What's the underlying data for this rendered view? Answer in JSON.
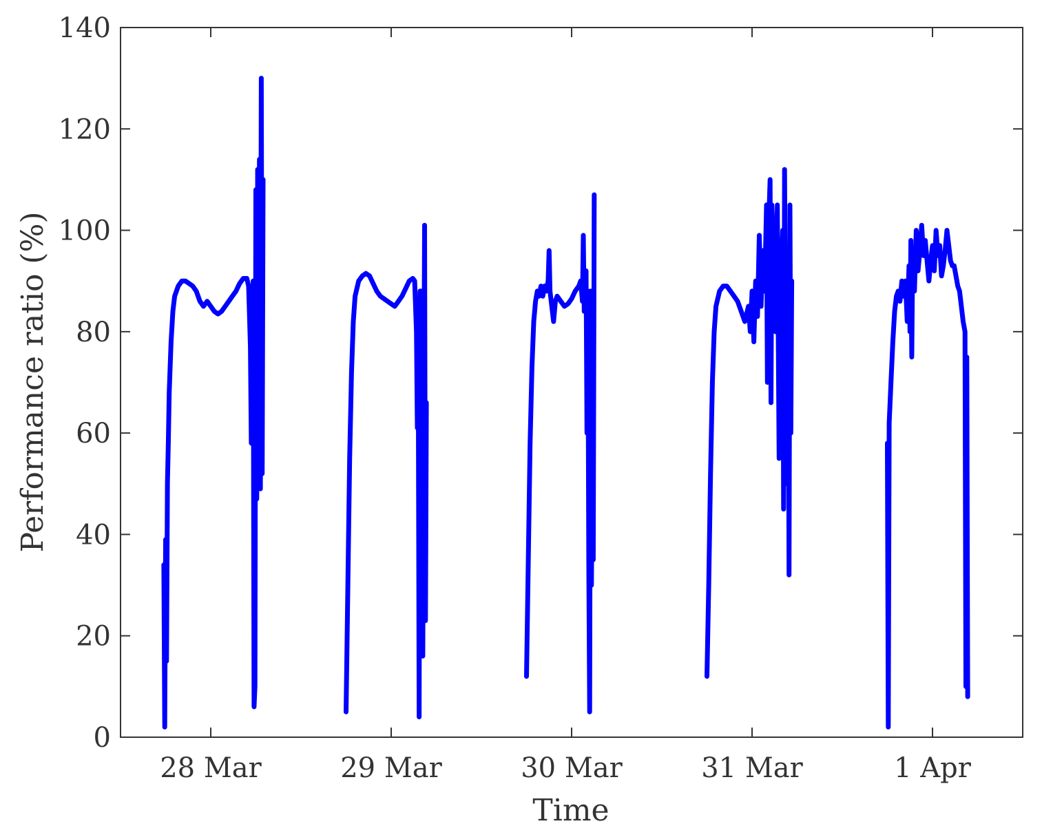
{
  "chart_data": {
    "type": "line",
    "title": "",
    "xlabel": "Time",
    "ylabel": "Performance ratio (%)",
    "ylim": [
      0,
      140
    ],
    "xlim": [
      -0.5,
      4.5
    ],
    "xunit": "days from 28 Mar (tick positions)",
    "y_ticks": [
      0,
      20,
      40,
      60,
      80,
      100,
      120,
      140
    ],
    "x_ticks": [
      {
        "value": 0,
        "label": "28 Mar"
      },
      {
        "value": 1,
        "label": "29 Mar"
      },
      {
        "value": 2,
        "label": "30 Mar"
      },
      {
        "value": 3,
        "label": "31 Mar"
      },
      {
        "value": 4,
        "label": "1 Apr"
      }
    ],
    "grid": false,
    "legend": "none",
    "series": [
      {
        "color": "#0000ff",
        "segments": [
          [
            [
              -0.26,
              34
            ],
            [
              -0.255,
              2
            ],
            [
              -0.25,
              39
            ],
            [
              -0.245,
              15
            ],
            [
              -0.24,
              50
            ],
            [
              -0.235,
              58
            ],
            [
              -0.23,
              68
            ],
            [
              -0.22,
              78
            ],
            [
              -0.21,
              84
            ],
            [
              -0.2,
              87
            ],
            [
              -0.18,
              89
            ],
            [
              -0.16,
              90
            ],
            [
              -0.14,
              90
            ],
            [
              -0.12,
              89.5
            ],
            [
              -0.1,
              89
            ],
            [
              -0.08,
              88
            ],
            [
              -0.06,
              86
            ],
            [
              -0.04,
              85
            ],
            [
              -0.02,
              86
            ],
            [
              0,
              85
            ],
            [
              0.02,
              84
            ],
            [
              0.04,
              83.5
            ],
            [
              0.06,
              84
            ],
            [
              0.08,
              85
            ],
            [
              0.1,
              86
            ],
            [
              0.12,
              87
            ],
            [
              0.14,
              88
            ],
            [
              0.16,
              89.5
            ],
            [
              0.18,
              90.5
            ],
            [
              0.2,
              90.5
            ],
            [
              0.21,
              89
            ],
            [
              0.22,
              77
            ],
            [
              0.225,
              58
            ],
            [
              0.23,
              62
            ],
            [
              0.235,
              90
            ],
            [
              0.24,
              6
            ],
            [
              0.245,
              10
            ],
            [
              0.25,
              108
            ],
            [
              0.255,
              47
            ],
            [
              0.26,
              112
            ],
            [
              0.265,
              58
            ],
            [
              0.27,
              114
            ],
            [
              0.275,
              49
            ],
            [
              0.28,
              130
            ],
            [
              0.285,
              52
            ],
            [
              0.29,
              110
            ]
          ],
          [
            [
              0.75,
              5
            ],
            [
              0.76,
              30
            ],
            [
              0.77,
              55
            ],
            [
              0.78,
              72
            ],
            [
              0.79,
              82
            ],
            [
              0.8,
              87
            ],
            [
              0.82,
              90
            ],
            [
              0.84,
              91
            ],
            [
              0.86,
              91.5
            ],
            [
              0.88,
              91
            ],
            [
              0.9,
              89.5
            ],
            [
              0.92,
              88
            ],
            [
              0.94,
              87
            ],
            [
              0.96,
              86.5
            ],
            [
              0.98,
              86
            ],
            [
              1.0,
              85.5
            ],
            [
              1.02,
              85
            ],
            [
              1.04,
              86
            ],
            [
              1.06,
              87
            ],
            [
              1.08,
              88.5
            ],
            [
              1.1,
              90
            ],
            [
              1.12,
              90.5
            ],
            [
              1.13,
              90
            ],
            [
              1.14,
              80
            ],
            [
              1.145,
              61
            ],
            [
              1.15,
              75
            ],
            [
              1.155,
              4
            ],
            [
              1.16,
              88
            ],
            [
              1.165,
              20
            ],
            [
              1.17,
              88
            ],
            [
              1.175,
              16
            ],
            [
              1.18,
              60
            ],
            [
              1.185,
              101
            ],
            [
              1.19,
              23
            ],
            [
              1.195,
              66
            ]
          ],
          [
            [
              1.75,
              12
            ],
            [
              1.76,
              35
            ],
            [
              1.77,
              58
            ],
            [
              1.78,
              73
            ],
            [
              1.79,
              82
            ],
            [
              1.8,
              86
            ],
            [
              1.81,
              88
            ],
            [
              1.82,
              87
            ],
            [
              1.83,
              89
            ],
            [
              1.84,
              87
            ],
            [
              1.85,
              89
            ],
            [
              1.86,
              88
            ],
            [
              1.87,
              90
            ],
            [
              1.875,
              96
            ],
            [
              1.88,
              88
            ],
            [
              1.89,
              85
            ],
            [
              1.9,
              82
            ],
            [
              1.91,
              86
            ],
            [
              1.92,
              87
            ],
            [
              1.94,
              86
            ],
            [
              1.96,
              85
            ],
            [
              1.98,
              85.5
            ],
            [
              2.0,
              86.5
            ],
            [
              2.02,
              88
            ],
            [
              2.04,
              89
            ],
            [
              2.05,
              90
            ],
            [
              2.06,
              86
            ],
            [
              2.065,
              99
            ],
            [
              2.07,
              84
            ],
            [
              2.08,
              92
            ],
            [
              2.085,
              60
            ],
            [
              2.09,
              88
            ],
            [
              2.095,
              35
            ],
            [
              2.1,
              5
            ],
            [
              2.105,
              88
            ],
            [
              2.11,
              30
            ],
            [
              2.115,
              60
            ],
            [
              2.12,
              35
            ],
            [
              2.125,
              107
            ]
          ],
          [
            [
              2.75,
              12
            ],
            [
              2.76,
              30
            ],
            [
              2.77,
              52
            ],
            [
              2.78,
              70
            ],
            [
              2.79,
              80
            ],
            [
              2.8,
              85
            ],
            [
              2.82,
              88
            ],
            [
              2.84,
              89
            ],
            [
              2.86,
              89
            ],
            [
              2.88,
              88
            ],
            [
              2.9,
              87
            ],
            [
              2.92,
              86
            ],
            [
              2.94,
              84
            ],
            [
              2.96,
              82
            ],
            [
              2.98,
              85
            ],
            [
              2.99,
              80
            ],
            [
              3.0,
              88
            ],
            [
              3.01,
              78
            ],
            [
              3.02,
              90
            ],
            [
              3.03,
              83
            ],
            [
              3.04,
              99
            ],
            [
              3.05,
              85
            ],
            [
              3.06,
              96
            ],
            [
              3.07,
              88
            ],
            [
              3.08,
              105
            ],
            [
              3.085,
              70
            ],
            [
              3.09,
              99
            ],
            [
              3.1,
              110
            ],
            [
              3.105,
              66
            ],
            [
              3.11,
              105
            ],
            [
              3.12,
              96
            ],
            [
              3.13,
              80
            ],
            [
              3.14,
              105
            ],
            [
              3.15,
              55
            ],
            [
              3.16,
              90
            ],
            [
              3.17,
              100
            ],
            [
              3.175,
              45
            ],
            [
              3.18,
              112
            ],
            [
              3.19,
              50
            ],
            [
              3.2,
              90
            ],
            [
              3.205,
              32
            ],
            [
              3.21,
              105
            ],
            [
              3.215,
              60
            ],
            [
              3.22,
              90
            ]
          ],
          [
            [
              3.75,
              58
            ],
            [
              3.755,
              2
            ],
            [
              3.76,
              62
            ],
            [
              3.77,
              70
            ],
            [
              3.78,
              78
            ],
            [
              3.79,
              84
            ],
            [
              3.8,
              87
            ],
            [
              3.81,
              88
            ],
            [
              3.82,
              86
            ],
            [
              3.83,
              90
            ],
            [
              3.84,
              87
            ],
            [
              3.85,
              90
            ],
            [
              3.86,
              82
            ],
            [
              3.87,
              93
            ],
            [
              3.875,
              80
            ],
            [
              3.88,
              98
            ],
            [
              3.885,
              75
            ],
            [
              3.89,
              95
            ],
            [
              3.9,
              88
            ],
            [
              3.91,
              100
            ],
            [
              3.92,
              92
            ],
            [
              3.93,
              96
            ],
            [
              3.94,
              101
            ],
            [
              3.95,
              95
            ],
            [
              3.96,
              98
            ],
            [
              3.97,
              94
            ],
            [
              3.98,
              90
            ],
            [
              3.99,
              94
            ],
            [
              4.0,
              97
            ],
            [
              4.01,
              92
            ],
            [
              4.02,
              100
            ],
            [
              4.03,
              95
            ],
            [
              4.04,
              97
            ],
            [
              4.05,
              91
            ],
            [
              4.06,
              93
            ],
            [
              4.07,
              96
            ],
            [
              4.08,
              100
            ],
            [
              4.09,
              97
            ],
            [
              4.1,
              94
            ],
            [
              4.11,
              93
            ],
            [
              4.12,
              93
            ],
            [
              4.13,
              91
            ],
            [
              4.14,
              89
            ],
            [
              4.15,
              88
            ],
            [
              4.16,
              85
            ],
            [
              4.17,
              82
            ],
            [
              4.18,
              80
            ],
            [
              4.185,
              10
            ],
            [
              4.19,
              75
            ],
            [
              4.195,
              8
            ]
          ]
        ]
      }
    ]
  }
}
